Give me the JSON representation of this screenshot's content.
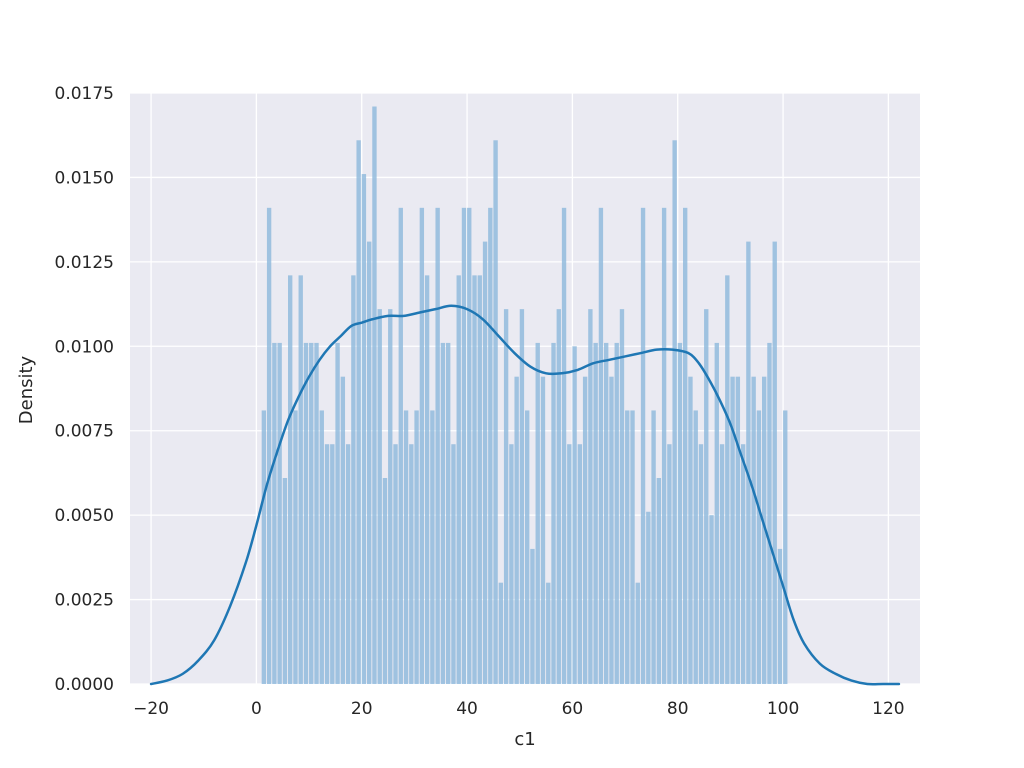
{
  "chart_data": {
    "type": "bar",
    "subtype": "histogram-with-kde",
    "title": "",
    "xlabel": "c1",
    "ylabel": "Density",
    "xlim": [
      -24,
      126
    ],
    "ylim": [
      0,
      0.0175
    ],
    "grid": true,
    "legend": "none",
    "colors": {
      "background": "#eaeaf2",
      "grid": "#ffffff",
      "bars": "#92bbdd",
      "kde": "#1f77b4",
      "text": "#262626"
    },
    "x_ticks": [
      -20,
      0,
      20,
      40,
      60,
      80,
      100,
      120
    ],
    "x_tick_labels": [
      "−20",
      "0",
      "20",
      "40",
      "60",
      "80",
      "100",
      "120"
    ],
    "y_ticks": [
      0,
      0.0025,
      0.005,
      0.0075,
      0.01,
      0.0125,
      0.015,
      0.0175
    ],
    "y_tick_labels": [
      "0.0000",
      "0.0025",
      "0.0050",
      "0.0075",
      "0.0100",
      "0.0125",
      "0.0150",
      "0.0175"
    ],
    "histogram": {
      "bin_start": 1,
      "bin_width": 1,
      "values": [
        0.0081,
        0.0141,
        0.0101,
        0.0101,
        0.0061,
        0.0121,
        0.0081,
        0.0121,
        0.0101,
        0.0101,
        0.0101,
        0.0081,
        0.0071,
        0.0071,
        0.0101,
        0.0091,
        0.0071,
        0.0121,
        0.0161,
        0.0151,
        0.0131,
        0.0171,
        0.0111,
        0.0061,
        0.0111,
        0.0071,
        0.0141,
        0.0081,
        0.0071,
        0.0081,
        0.0141,
        0.0121,
        0.0081,
        0.0141,
        0.0101,
        0.0101,
        0.0071,
        0.0121,
        0.0141,
        0.0141,
        0.0121,
        0.0121,
        0.0131,
        0.0141,
        0.0161,
        0.003,
        0.0111,
        0.0071,
        0.0091,
        0.0111,
        0.0081,
        0.004,
        0.0101,
        0.0091,
        0.003,
        0.0101,
        0.0111,
        0.0141,
        0.0071,
        0.01,
        0.0071,
        0.0091,
        0.0111,
        0.0101,
        0.0141,
        0.0101,
        0.0091,
        0.0101,
        0.0111,
        0.0081,
        0.0081,
        0.003,
        0.0141,
        0.0051,
        0.0081,
        0.0061,
        0.0141,
        0.0071,
        0.0161,
        0.0101,
        0.0141,
        0.0091,
        0.0081,
        0.0071,
        0.0111,
        0.005,
        0.0101,
        0.0071,
        0.0121,
        0.0091,
        0.0091,
        0.0071,
        0.0131,
        0.0091,
        0.0081,
        0.0091,
        0.0101,
        0.0131,
        0.004,
        0.0081
      ]
    },
    "kde": {
      "x": [
        -20,
        -17,
        -14,
        -11,
        -8,
        -5,
        -2,
        0,
        2,
        4,
        6,
        8,
        10,
        12,
        14,
        16,
        18,
        20,
        22,
        25,
        28,
        31,
        34,
        37,
        40,
        43,
        46,
        49,
        52,
        55,
        58,
        61,
        64,
        67,
        70,
        73,
        76,
        79,
        82,
        84,
        86,
        88,
        90,
        92,
        94,
        96,
        98,
        100,
        102,
        104,
        107,
        110,
        113,
        116,
        119,
        122
      ],
      "y": [
        0.0,
        0.0001,
        0.0003,
        0.0007,
        0.0013,
        0.0023,
        0.0036,
        0.0047,
        0.0059,
        0.0069,
        0.0078,
        0.0085,
        0.0091,
        0.0096,
        0.01,
        0.0103,
        0.0106,
        0.0107,
        0.0108,
        0.0109,
        0.0109,
        0.011,
        0.0111,
        0.0112,
        0.0111,
        0.0108,
        0.0103,
        0.0098,
        0.0094,
        0.0092,
        0.0092,
        0.0093,
        0.0095,
        0.0096,
        0.0097,
        0.0098,
        0.0099,
        0.0099,
        0.0098,
        0.0095,
        0.009,
        0.0084,
        0.0077,
        0.0068,
        0.0059,
        0.0049,
        0.0039,
        0.0029,
        0.0019,
        0.0012,
        0.0006,
        0.0003,
        0.0001,
        0.0,
        0.0,
        0.0
      ]
    }
  }
}
